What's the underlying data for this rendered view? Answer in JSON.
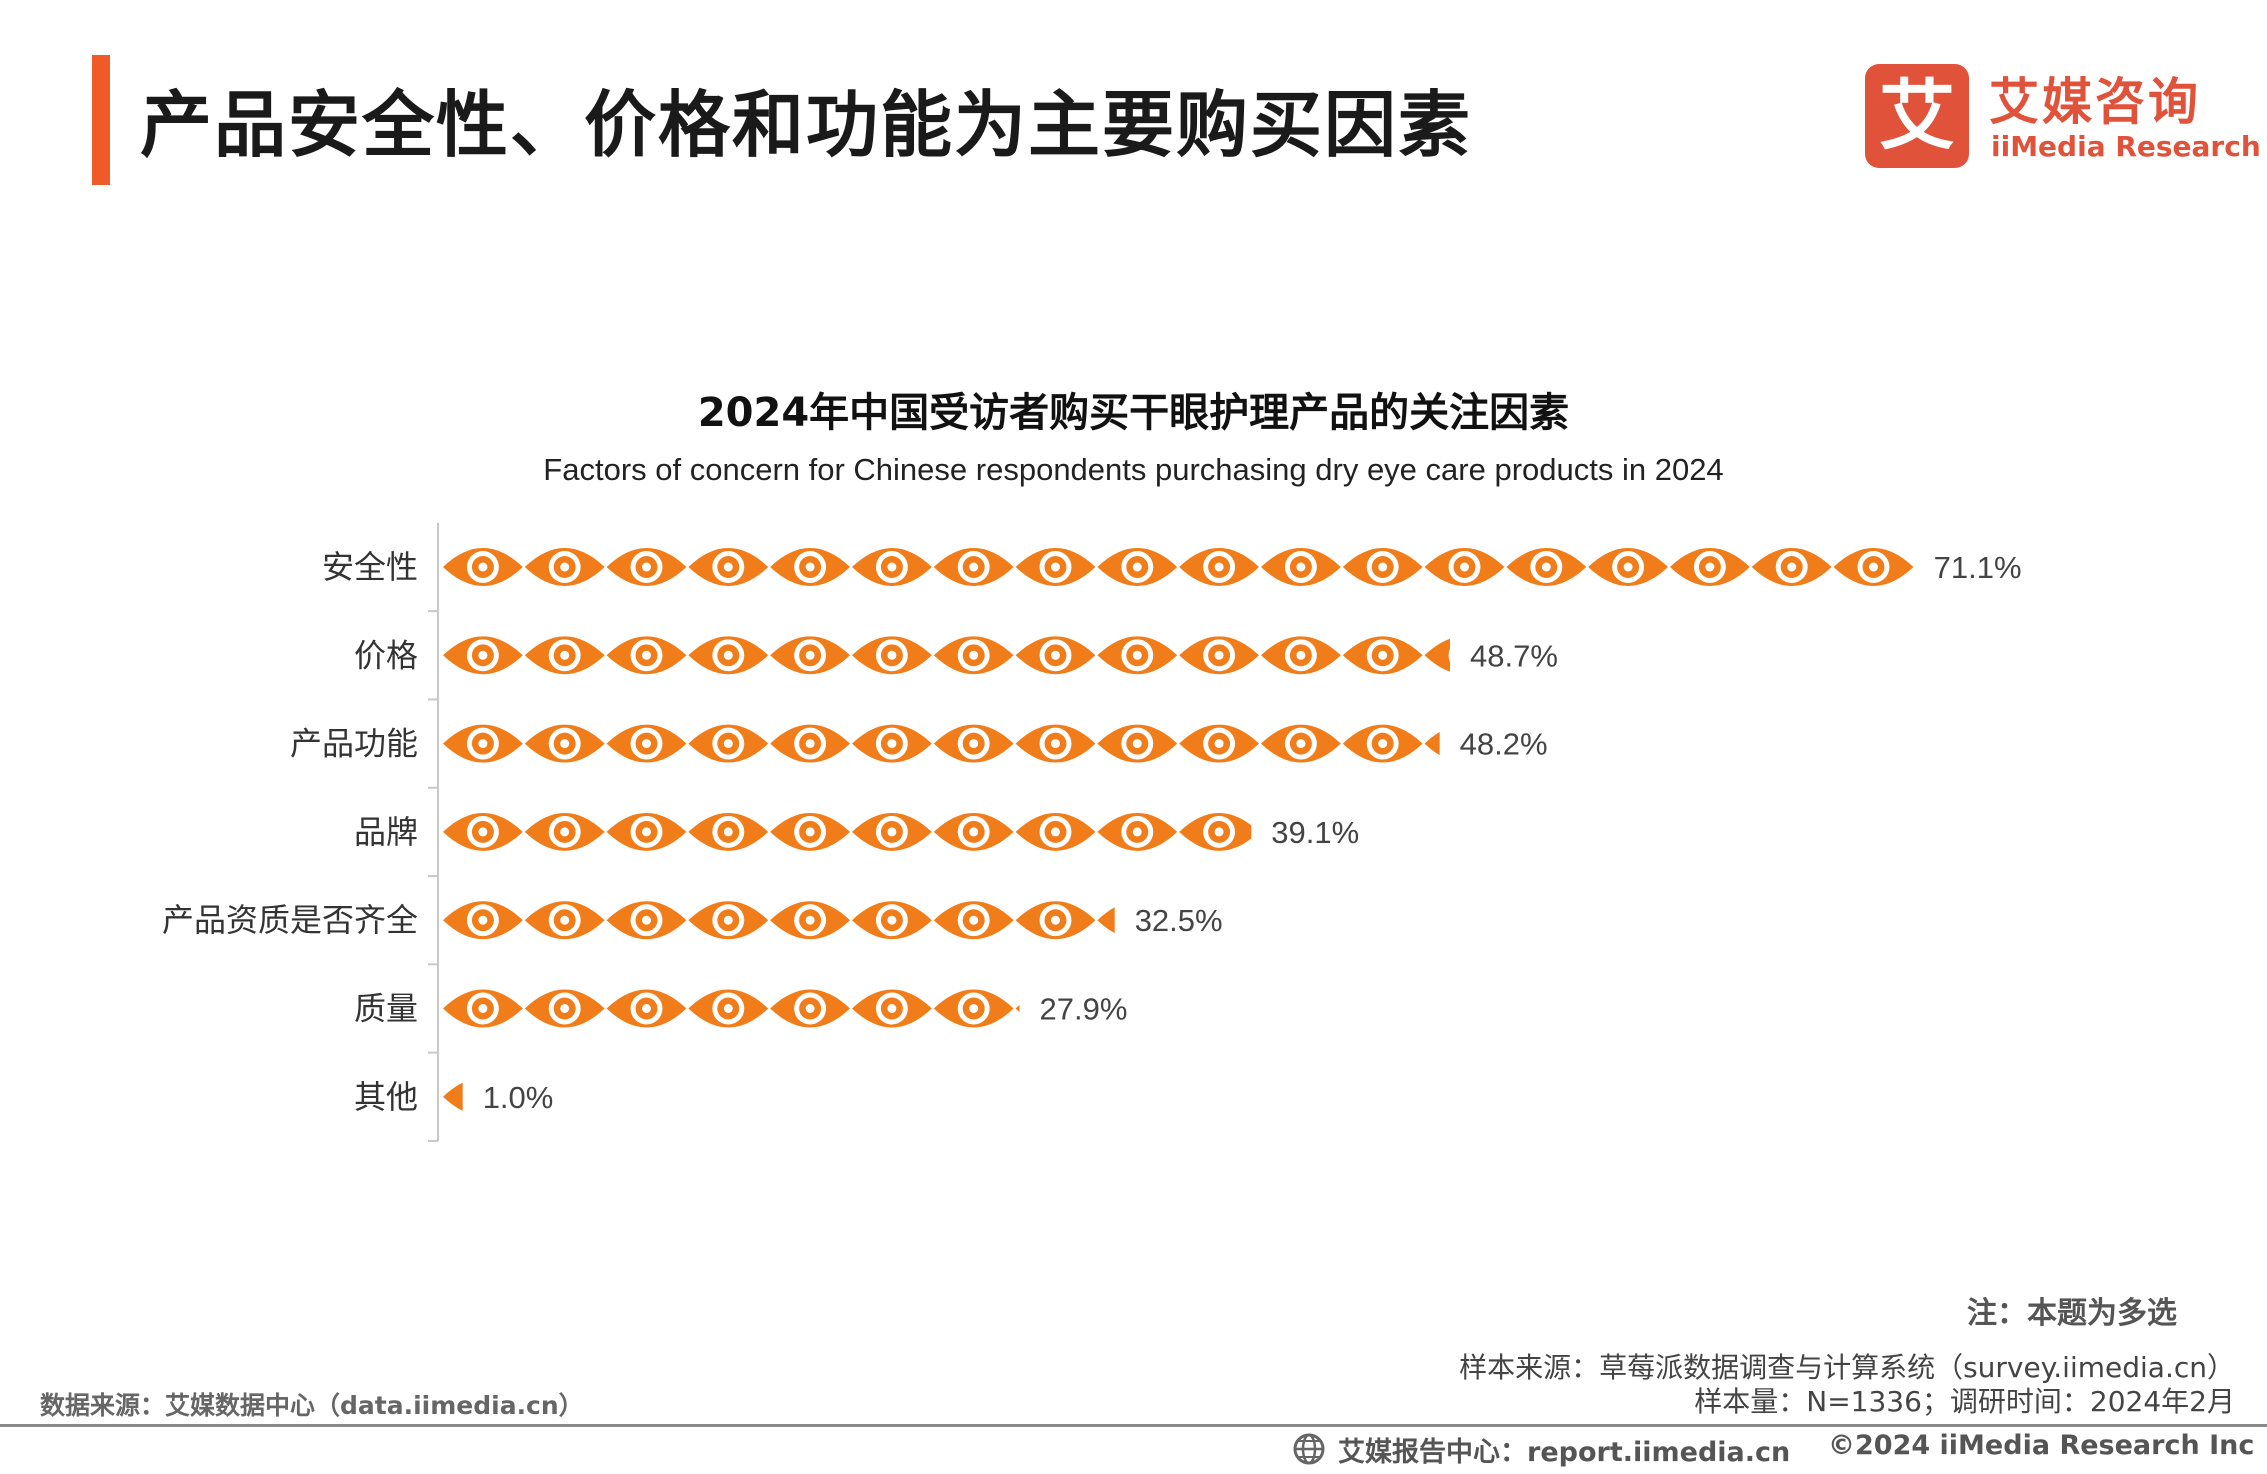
{
  "header": {
    "title": "产品安全性、价格和功能为主要购买因素",
    "accent_color": "#f05a28"
  },
  "logo": {
    "mark": "艾",
    "name_cn": "艾媒咨询",
    "name_en": "iiMedia Research",
    "color": "#e0523a"
  },
  "chart_data": {
    "type": "bar",
    "style": "pictogram",
    "icon": "eye-icon",
    "title": "2024年中国受访者购买干眼护理产品的关注因素",
    "subtitle": "Factors of concern for Chinese respondents purchasing dry eye care products in 2024",
    "categories": [
      "安全性",
      "价格",
      "产品功能",
      "品牌",
      "产品资质是否齐全",
      "质量",
      "其他"
    ],
    "values": [
      71.1,
      48.7,
      48.2,
      39.1,
      32.5,
      27.9,
      1.0
    ],
    "labels": [
      "71.1%",
      "48.7%",
      "48.2%",
      "39.1%",
      "32.5%",
      "27.9%",
      "1.0%"
    ],
    "unit": "%",
    "color": "#f07d19"
  },
  "notes": {
    "note": "注：本题为多选",
    "sample_source": "样本来源：草莓派数据调查与计算系统（survey.iimedia.cn）",
    "sample_size": "样本量：N=1336；调研时间：2024年2月",
    "data_source": "数据来源：艾媒数据中心（data.iimedia.cn）"
  },
  "footer": {
    "report_center": "艾媒报告中心：report.iimedia.cn",
    "copyright": "©2024  iiMedia Research  Inc"
  }
}
